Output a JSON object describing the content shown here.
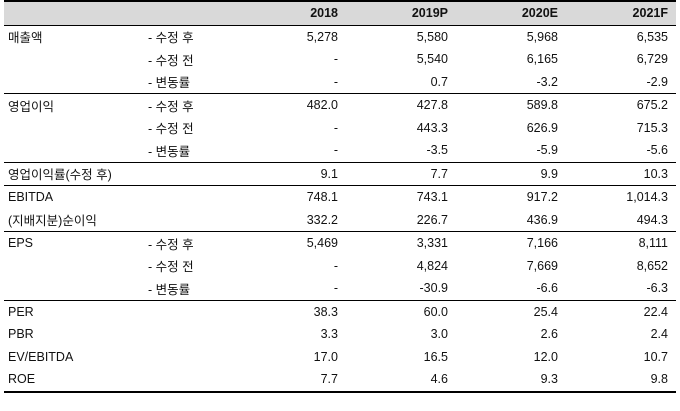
{
  "table": {
    "headers": [
      "",
      "",
      "2018",
      "2019P",
      "2020E",
      "2021F"
    ],
    "rows": [
      {
        "label": "매출액",
        "sub": "- 수정 후",
        "values": [
          "5,278",
          "5,580",
          "5,968",
          "6,535"
        ],
        "group_start": true
      },
      {
        "label": "",
        "sub": "- 수정 전",
        "values": [
          "-",
          "5,540",
          "6,165",
          "6,729"
        ]
      },
      {
        "label": "",
        "sub": "- 변동률",
        "values": [
          "-",
          "0.7",
          "-3.2",
          "-2.9"
        ]
      },
      {
        "label": "영업이익",
        "sub": "- 수정 후",
        "values": [
          "482.0",
          "427.8",
          "589.8",
          "675.2"
        ],
        "group_start": true
      },
      {
        "label": "",
        "sub": "- 수정 전",
        "values": [
          "-",
          "443.3",
          "626.9",
          "715.3"
        ]
      },
      {
        "label": "",
        "sub": "- 변동률",
        "values": [
          "-",
          "-3.5",
          "-5.9",
          "-5.6"
        ]
      },
      {
        "label": "영업이익률(수정 후)",
        "sub": "",
        "values": [
          "9.1",
          "7.7",
          "9.9",
          "10.3"
        ],
        "group_start": true
      },
      {
        "label": "EBITDA",
        "sub": "",
        "values": [
          "748.1",
          "743.1",
          "917.2",
          "1,014.3"
        ],
        "group_start": true
      },
      {
        "label": "(지배지분)순이익",
        "sub": "",
        "values": [
          "332.2",
          "226.7",
          "436.9",
          "494.3"
        ]
      },
      {
        "label": "EPS",
        "sub": "- 수정 후",
        "values": [
          "5,469",
          "3,331",
          "7,166",
          "8,111"
        ],
        "group_start": true
      },
      {
        "label": "",
        "sub": "- 수정 전",
        "values": [
          "-",
          "4,824",
          "7,669",
          "8,652"
        ]
      },
      {
        "label": "",
        "sub": "- 변동률",
        "values": [
          "-",
          "-30.9",
          "-6.6",
          "-6.3"
        ]
      },
      {
        "label": "PER",
        "sub": "",
        "values": [
          "38.3",
          "60.0",
          "25.4",
          "22.4"
        ],
        "group_start": true
      },
      {
        "label": "PBR",
        "sub": "",
        "values": [
          "3.3",
          "3.0",
          "2.6",
          "2.4"
        ]
      },
      {
        "label": "EV/EBITDA",
        "sub": "",
        "values": [
          "17.0",
          "16.5",
          "12.0",
          "10.7"
        ]
      },
      {
        "label": "ROE",
        "sub": "",
        "values": [
          "7.7",
          "4.6",
          "9.3",
          "9.8"
        ]
      }
    ]
  }
}
